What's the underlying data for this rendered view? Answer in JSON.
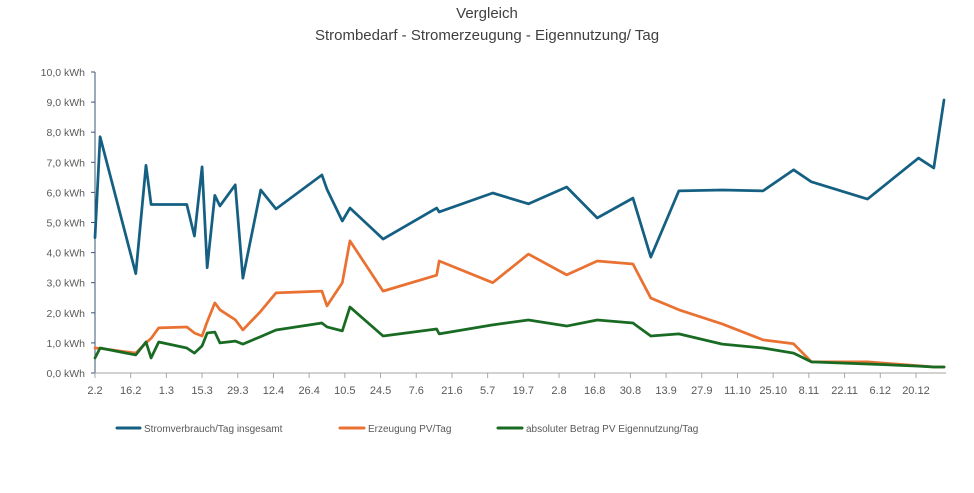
{
  "chart_data": {
    "type": "line",
    "title": "Vergleich",
    "subtitle": "Strombedarf - Stromerzeugung - Eigennutzung/ Tag",
    "grid": false,
    "legend": "bottom",
    "xlim": [
      "2.2",
      "31.12"
    ],
    "ylim": [
      0,
      10
    ],
    "x_ticks": [
      "2.2",
      "16.2",
      "1.3",
      "15.3",
      "29.3",
      "12.4",
      "26.4",
      "10.5",
      "24.5",
      "7.6",
      "21.6",
      "5.7",
      "19.7",
      "2.8",
      "16.8",
      "30.8",
      "13.9",
      "27.9",
      "11.10",
      "25.10",
      "8.11",
      "22.11",
      "6.12",
      "20.12"
    ],
    "y_ticks": [
      {
        "value": 0,
        "label": "0,0 kWh"
      },
      {
        "value": 1,
        "label": "1,0 kWh"
      },
      {
        "value": 2,
        "label": "2,0 kWh"
      },
      {
        "value": 3,
        "label": "3,0 kWh"
      },
      {
        "value": 4,
        "label": "4,0 kWh"
      },
      {
        "value": 5,
        "label": "5,0 kWh"
      },
      {
        "value": 6,
        "label": "6,0 kWh"
      },
      {
        "value": 7,
        "label": "7,0 kWh"
      },
      {
        "value": 8,
        "label": "8,0 kWh"
      },
      {
        "value": 9,
        "label": "9,0 kWh"
      },
      {
        "value": 10,
        "label": "10,0 kWh"
      }
    ],
    "x": [
      "2.2",
      "4.2",
      "18.2",
      "22.2",
      "24.2",
      "27.2",
      "9.3",
      "12.3",
      "15.3",
      "17.3",
      "20.3",
      "22.3",
      "28.3",
      "31.3",
      "7.4",
      "13.4",
      "1.5",
      "3.5",
      "9.5",
      "12.5",
      "25.5",
      "15.6",
      "16.6",
      "7.7",
      "21.7",
      "5.8",
      "17.8",
      "31.8",
      "7.9",
      "18.9",
      "5.10",
      "21.10",
      "2.11",
      "9.11",
      "1.12",
      "21.12",
      "27.12",
      "31.12"
    ],
    "series": [
      {
        "name": "Stromverbrauch/Tag insgesamt",
        "color": "#156082",
        "values": [
          4.5,
          7.85,
          3.3,
          6.9,
          5.6,
          5.6,
          5.6,
          4.55,
          6.85,
          3.5,
          5.9,
          5.55,
          6.25,
          3.15,
          6.08,
          5.45,
          6.58,
          6.1,
          5.05,
          5.48,
          4.45,
          5.48,
          5.35,
          5.98,
          5.62,
          6.18,
          5.15,
          5.81,
          3.85,
          6.05,
          6.08,
          6.05,
          6.75,
          6.35,
          5.78,
          7.14,
          6.81,
          9.07
        ]
      },
      {
        "name": "Erzeugung PV/Tag",
        "color": "#E97132",
        "values": [
          0.83,
          0.82,
          0.66,
          1.0,
          1.15,
          1.5,
          1.53,
          1.33,
          1.23,
          1.7,
          2.33,
          2.1,
          1.77,
          1.43,
          2.05,
          2.66,
          2.72,
          2.23,
          3.0,
          4.39,
          2.72,
          3.25,
          3.72,
          3.0,
          3.95,
          3.26,
          3.72,
          3.62,
          2.49,
          2.1,
          1.63,
          1.1,
          0.97,
          0.37,
          0.37,
          0.24,
          0.2,
          0.2
        ]
      },
      {
        "name": "absoluter Betrag PV Eigennutzung/Tag",
        "color": "#196B24",
        "values": [
          0.5,
          0.83,
          0.6,
          1.03,
          0.5,
          1.03,
          0.83,
          0.66,
          0.9,
          1.33,
          1.36,
          1.0,
          1.06,
          0.96,
          1.21,
          1.43,
          1.66,
          1.53,
          1.4,
          2.19,
          1.23,
          1.46,
          1.3,
          1.6,
          1.76,
          1.56,
          1.76,
          1.66,
          1.23,
          1.3,
          0.96,
          0.83,
          0.66,
          0.37,
          0.3,
          0.23,
          0.2,
          0.2
        ]
      }
    ]
  }
}
